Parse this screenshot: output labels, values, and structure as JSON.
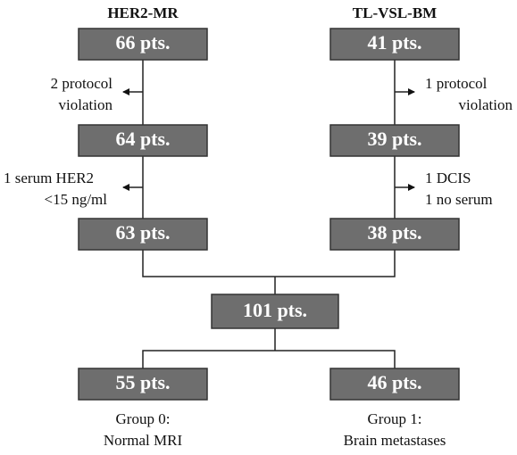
{
  "columns": [
    {
      "title": "HER2-MR"
    },
    {
      "title": "TL-VSL-BM"
    }
  ],
  "nodes": [
    {
      "label": "66 pts."
    },
    {
      "label": "64 pts."
    },
    {
      "label": "63 pts."
    },
    {
      "label": "41 pts."
    },
    {
      "label": "39 pts."
    },
    {
      "label": "38 pts."
    },
    {
      "label": "101 pts."
    },
    {
      "label": "55 pts."
    },
    {
      "label": "46 pts."
    }
  ],
  "exclusions": [
    {
      "lines": [
        "2 protocol",
        "violation"
      ]
    },
    {
      "lines": [
        "1 serum HER2",
        "<15 ng/ml"
      ]
    },
    {
      "lines": [
        "1 protocol",
        "violation"
      ]
    },
    {
      "lines": [
        "1 DCIS",
        "1 no serum"
      ]
    }
  ],
  "groups": [
    {
      "lines": [
        "Group 0:",
        "Normal MRI"
      ]
    },
    {
      "lines": [
        "Group 1:",
        "Brain metastases"
      ]
    }
  ]
}
